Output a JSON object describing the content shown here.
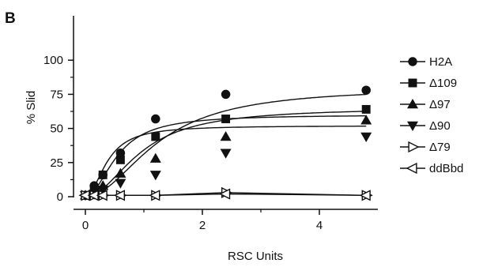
{
  "panel_label": "B",
  "chart_data": {
    "type": "scatter",
    "xlabel": "RSC Units",
    "ylabel": "% Slid",
    "xlim": [
      0,
      5
    ],
    "ylim": [
      0,
      100
    ],
    "xticks": [
      0,
      2,
      4
    ],
    "yticks": [
      0,
      25,
      50,
      75,
      100
    ],
    "grid": false,
    "legend_position": "right",
    "series": [
      {
        "name": "H2A",
        "marker": "circle-filled",
        "fit": true,
        "fit_model": {
          "a": 80,
          "b": 0.08,
          "k": 1.25
        },
        "x": [
          0,
          0.15,
          0.3,
          0.6,
          1.2,
          2.4,
          4.8
        ],
        "y": [
          1,
          8,
          16,
          32,
          57,
          75,
          78
        ]
      },
      {
        "name": "Δ109",
        "marker": "square-filled",
        "fit": true,
        "fit_model": {
          "a": 65,
          "b": 0.08,
          "k": 0.95
        },
        "x": [
          0,
          0.15,
          0.3,
          0.6,
          1.2,
          2.4,
          4.8
        ],
        "y": [
          1,
          5,
          16,
          27,
          44,
          57,
          64
        ]
      },
      {
        "name": "Δ97",
        "marker": "triangle-up-filled",
        "fit": true,
        "fit_model": {
          "a": 60,
          "b": 0.1,
          "k": 0.55
        },
        "x": [
          0,
          0.15,
          0.3,
          0.6,
          1.2,
          2.4,
          4.8
        ],
        "y": [
          1,
          4,
          8,
          17,
          28,
          44,
          56
        ]
      },
      {
        "name": "Δ90",
        "marker": "triangle-down-filled",
        "fit": true,
        "fit_model": {
          "a": 52,
          "b": 0.1,
          "k": 0.38
        },
        "x": [
          0,
          0.15,
          0.3,
          0.6,
          1.2,
          2.4,
          4.8
        ],
        "y": [
          1,
          2,
          5,
          10,
          16,
          32,
          44
        ]
      },
      {
        "name": "Δ79",
        "marker": "triangle-right-open",
        "fit": false,
        "x": [
          0,
          0.15,
          0.3,
          0.6,
          1.2,
          2.4,
          4.8
        ],
        "y": [
          1,
          1,
          1,
          1,
          1,
          3,
          1
        ]
      },
      {
        "name": "ddBbd",
        "marker": "triangle-left-open",
        "fit": false,
        "x": [
          0,
          0.15,
          0.3,
          0.6,
          1.2,
          2.4,
          4.8
        ],
        "y": [
          1,
          1,
          1,
          1,
          1,
          2,
          1
        ]
      }
    ]
  }
}
